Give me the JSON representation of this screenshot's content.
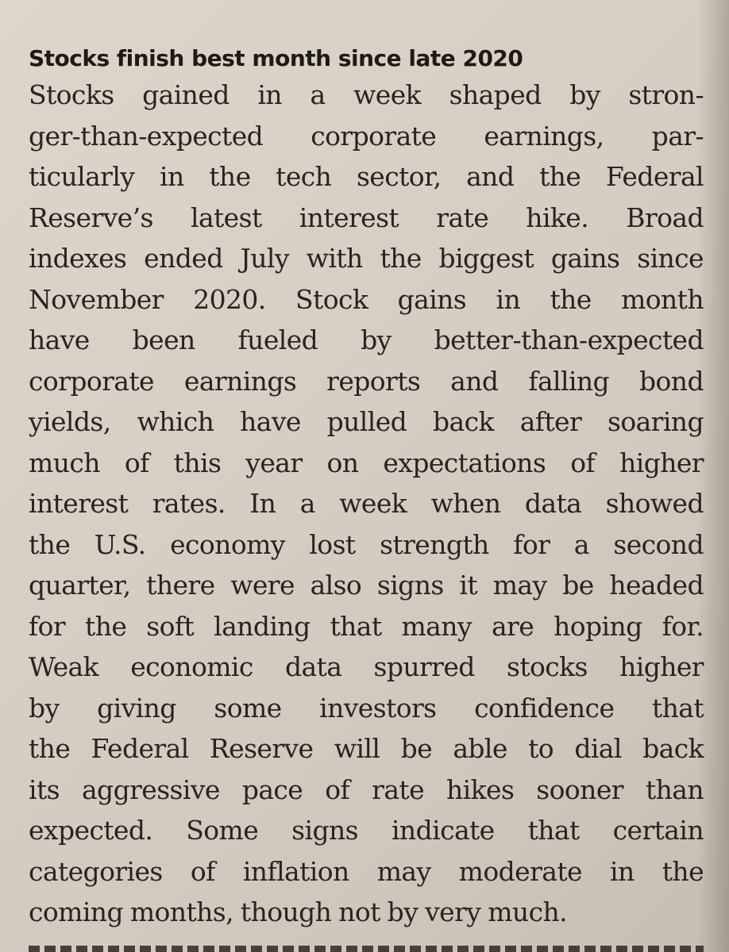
{
  "article": {
    "headline": "Stocks finish best month since late 2020",
    "lines": [
      "Stocks gained in a week shaped by stron-",
      "ger-than-expected corporate earnings, par-",
      "ticularly in the tech sector, and the Federal",
      "Reserve’s latest interest rate hike. Broad",
      "indexes ended July with the biggest gains since",
      "November 2020. Stock gains in the month",
      "have been fueled by better-than-expected",
      "corporate earnings reports and falling bond",
      "yields, which have pulled back after soaring",
      "much of this year on expectations of higher",
      "interest rates. In a week when data showed",
      "the U.S. economy lost strength for a second",
      "quarter, there were also signs it may be headed",
      "for the soft landing that many are hoping for.",
      "Weak economic data spurred stocks higher",
      "by giving some investors confidence that",
      "the Federal Reserve will be able to dial back",
      "its aggressive pace of rate hikes sooner than",
      "expected. Some signs indicate that certain",
      "categories of inflation may moderate in the",
      "coming months, though not by very much."
    ]
  }
}
